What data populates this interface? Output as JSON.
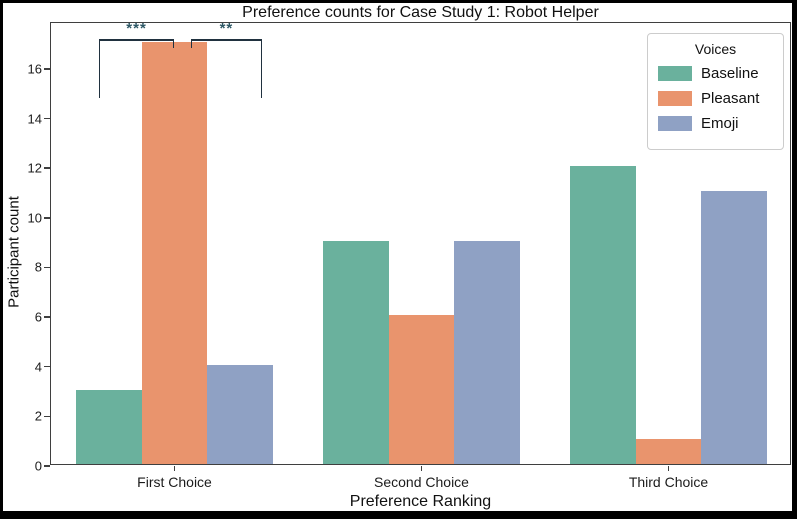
{
  "chart_data": {
    "type": "bar",
    "title": "Preference counts for Case Study 1: Robot Helper",
    "xlabel": "Preference Ranking",
    "ylabel": "Participant count",
    "categories": [
      "First Choice",
      "Second Choice",
      "Third Choice"
    ],
    "series": [
      {
        "name": "Baseline",
        "color": "#6ab19d",
        "values": [
          3,
          9,
          12
        ]
      },
      {
        "name": "Pleasant",
        "color": "#e9946d",
        "values": [
          17,
          6,
          1
        ]
      },
      {
        "name": "Emoji",
        "color": "#8fa1c4",
        "values": [
          4,
          9,
          11
        ]
      }
    ],
    "ylim": [
      0,
      17.85
    ],
    "yticks": [
      0,
      2,
      4,
      6,
      8,
      10,
      12,
      14,
      16
    ],
    "grid": false,
    "legend": {
      "title": "Voices",
      "position": "upper right"
    },
    "annotations": [
      {
        "label": "***",
        "group": 0,
        "from_bar": 0,
        "to_bar": 1,
        "long_side": "left"
      },
      {
        "label": "**",
        "group": 0,
        "from_bar": 1,
        "to_bar": 2,
        "long_side": "right"
      }
    ],
    "annotation_colors": {
      "line": "#20313f",
      "stars": "#2e5866"
    },
    "frame_color": "#3f3f3f"
  }
}
